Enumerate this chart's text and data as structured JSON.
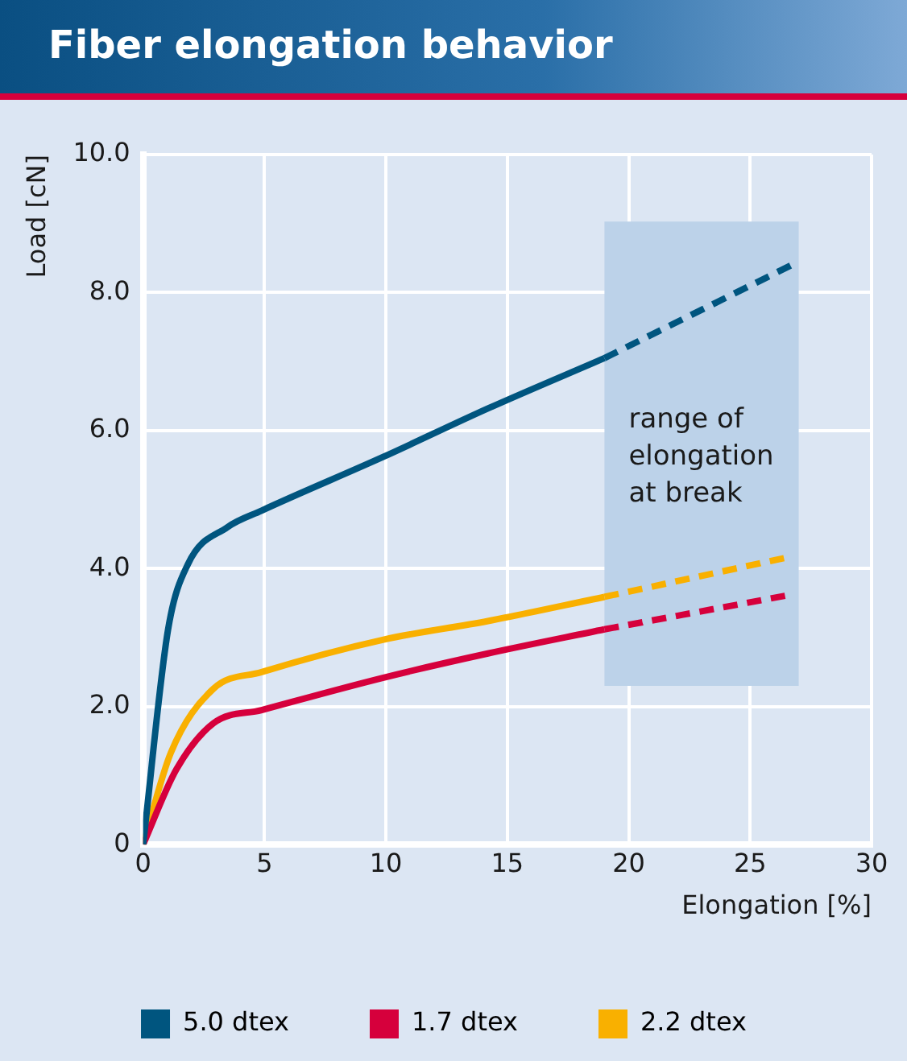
{
  "chart_data": {
    "type": "line",
    "title": "Fiber elongation behavior",
    "xlabel": "Elongation [%]",
    "ylabel": "Load [cN]",
    "xlim": [
      0,
      30
    ],
    "xticks": [
      0,
      5,
      10,
      15,
      20,
      25,
      30
    ],
    "ylim": [
      0,
      10
    ],
    "yticks": [
      0,
      {
        "value": 2,
        "label": "2.0"
      },
      {
        "value": 4,
        "label": "4.0"
      },
      {
        "value": 6,
        "label": "6.0"
      },
      {
        "value": 8,
        "label": "8.0"
      },
      {
        "value": 10,
        "label": "10.0"
      }
    ],
    "grid": true,
    "legend": "bottom",
    "bands": [
      {
        "axis": "x",
        "from": 19,
        "to": 27,
        "label": "range of elongation at break",
        "color": "#bcd2e9"
      }
    ],
    "series": [
      {
        "name": "5.0 dtex",
        "color": "#00557f",
        "line_style": "solid",
        "x": [
          0,
          1.03,
          1.84,
          3.47,
          4.88,
          9.9,
          14.2,
          19
        ],
        "values": [
          0,
          3.12,
          4.06,
          4.6,
          4.84,
          5.62,
          6.32,
          7.05
        ]
      },
      {
        "name": "1.7 dtex",
        "color": "#d6003c",
        "line_style": "solid",
        "x": [
          0,
          1.37,
          2.9,
          4.88,
          9.9,
          14.2,
          19
        ],
        "values": [
          0,
          1.09,
          1.76,
          1.95,
          2.42,
          2.77,
          3.12
        ]
      },
      {
        "name": "2.2 dtex",
        "color": "#f9b000",
        "line_style": "solid",
        "x": [
          0,
          1.14,
          2.9,
          4.88,
          9.9,
          14.2,
          19
        ],
        "values": [
          0,
          1.33,
          2.26,
          2.5,
          2.97,
          3.24,
          3.59
        ]
      },
      {
        "color": "#00557f",
        "line_style": "dashed",
        "x": [
          19,
          27
        ],
        "values": [
          7.05,
          8.45
        ]
      },
      {
        "color": "#d6003c",
        "line_style": "dashed",
        "x": [
          19,
          26.5
        ],
        "values": [
          3.12,
          3.61
        ]
      },
      {
        "color": "#f9b000",
        "line_style": "dashed",
        "x": [
          19,
          26.5
        ],
        "values": [
          3.59,
          4.16
        ]
      }
    ]
  }
}
